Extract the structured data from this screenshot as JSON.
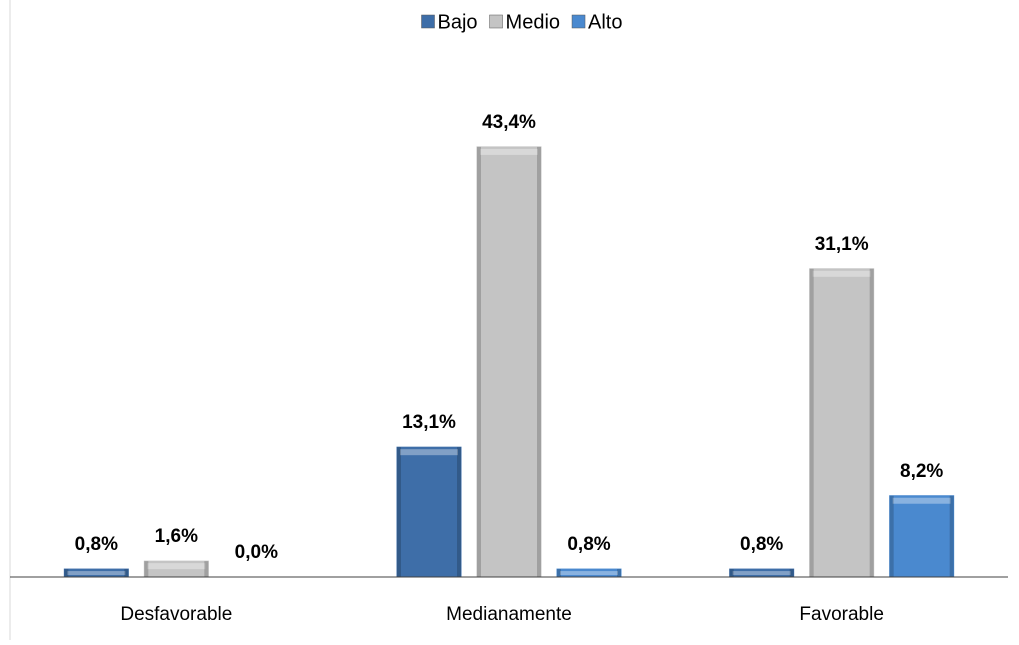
{
  "chart_data": {
    "type": "bar",
    "categories": [
      "Desfavorable",
      "Medianamente",
      "Favorable"
    ],
    "series": [
      {
        "name": "Bajo",
        "color": "#3e6ea8",
        "values": [
          0.8,
          13.1,
          0.8
        ],
        "value_labels": [
          "0,8%",
          "13,1%",
          "0,8%"
        ]
      },
      {
        "name": "Medio",
        "color": "#c4c4c4",
        "values": [
          1.6,
          43.4,
          31.1
        ],
        "value_labels": [
          "1,6%",
          "43,4%",
          "31,1%"
        ]
      },
      {
        "name": "Alto",
        "color": "#4a89cf",
        "values": [
          0.0,
          0.8,
          8.2
        ],
        "value_labels": [
          "0,0%",
          "0,8%",
          "8,2%"
        ]
      }
    ],
    "ylim": [
      0,
      50
    ],
    "legend": "top"
  }
}
